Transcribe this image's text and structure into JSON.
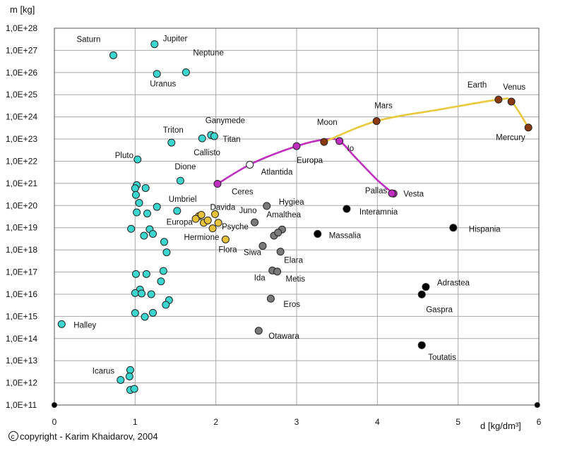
{
  "chart_data": {
    "type": "scatter",
    "xlabel": "d [kg/dm³]",
    "ylabel": "m [kg]",
    "xlim": [
      0,
      6
    ],
    "ylim_log10": [
      11,
      28
    ],
    "log_y": true,
    "grid": true,
    "x_ticks": [
      "0",
      "1",
      "2",
      "3",
      "4",
      "5",
      "6"
    ],
    "y_ticks": [
      "1,0E+11",
      "1,0E+12",
      "1,0E+13",
      "1,0E+14",
      "1,0E+15",
      "1,0E+16",
      "1,0E+17",
      "1,0E+18",
      "1,0E+19",
      "1,0E+20",
      "1,0E+21",
      "1,0E+22",
      "1,0E+23",
      "1,0E+24",
      "1,0E+25",
      "1,0E+26",
      "1,0E+27",
      "1,0E+28"
    ],
    "copyright": "copyright - Karim Khaidarov, 2004",
    "copyright_symbol": "c",
    "colors": {
      "icy": "#3cd6d0",
      "stony": "#e6c23a",
      "gray": "#7a7a7a",
      "metal": "#000000",
      "terrestrial": "#8b3a10",
      "moon_line": "#c02ec0",
      "planet_line": "#e8c83c",
      "grid": "#a8a8a8"
    },
    "series": [
      {
        "group": "icy",
        "points": [
          {
            "x": 0.73,
            "y": 26.78,
            "label": "Saturn"
          },
          {
            "x": 1.24,
            "y": 27.28,
            "label": "Jupiter"
          },
          {
            "x": 1.27,
            "y": 25.94,
            "label": "Uranus"
          },
          {
            "x": 1.63,
            "y": 26.01,
            "label": "Neptune"
          },
          {
            "x": 1.94,
            "y": 23.18,
            "label": "Ganymede"
          },
          {
            "x": 1.98,
            "y": 23.13,
            "label": "Titan"
          },
          {
            "x": 1.83,
            "y": 23.03,
            "label": "Callisto"
          },
          {
            "x": 1.45,
            "y": 22.84,
            "label": "Triton"
          },
          {
            "x": 1.03,
            "y": 22.08,
            "label": "Pluto"
          },
          {
            "x": 1.56,
            "y": 21.12,
            "label": "Dione"
          },
          {
            "x": 1.52,
            "y": 19.76,
            "label": "Umbriel"
          },
          {
            "x": 0.09,
            "y": 14.65,
            "label": "Halley"
          },
          {
            "x": 0.82,
            "y": 12.13,
            "label": "Icarus"
          },
          {
            "x": 1.02,
            "y": 20.92
          },
          {
            "x": 1.0,
            "y": 20.78
          },
          {
            "x": 1.13,
            "y": 20.79
          },
          {
            "x": 1.01,
            "y": 20.48
          },
          {
            "x": 1.05,
            "y": 20.12
          },
          {
            "x": 1.15,
            "y": 19.64
          },
          {
            "x": 1.27,
            "y": 19.94
          },
          {
            "x": 1.02,
            "y": 19.69
          },
          {
            "x": 0.95,
            "y": 18.95
          },
          {
            "x": 1.18,
            "y": 18.93
          },
          {
            "x": 1.22,
            "y": 18.72
          },
          {
            "x": 1.11,
            "y": 18.64
          },
          {
            "x": 1.36,
            "y": 18.36
          },
          {
            "x": 1.39,
            "y": 17.89
          },
          {
            "x": 1.01,
            "y": 16.91
          },
          {
            "x": 1.14,
            "y": 16.91
          },
          {
            "x": 1.35,
            "y": 17.05
          },
          {
            "x": 1.32,
            "y": 16.58
          },
          {
            "x": 1.06,
            "y": 16.21
          },
          {
            "x": 1.0,
            "y": 16.05
          },
          {
            "x": 1.08,
            "y": 16.03
          },
          {
            "x": 1.2,
            "y": 16.0
          },
          {
            "x": 1.42,
            "y": 15.73
          },
          {
            "x": 1.38,
            "y": 15.52
          },
          {
            "x": 1.0,
            "y": 15.15
          },
          {
            "x": 1.12,
            "y": 14.98
          },
          {
            "x": 1.22,
            "y": 15.16
          },
          {
            "x": 0.94,
            "y": 12.58
          },
          {
            "x": 0.93,
            "y": 12.29
          },
          {
            "x": 0.94,
            "y": 11.68
          },
          {
            "x": 0.99,
            "y": 11.73
          }
        ]
      },
      {
        "group": "stony",
        "points": [
          {
            "x": 1.79,
            "y": 19.52,
            "label": "Europa"
          },
          {
            "x": 1.85,
            "y": 19.22,
            "label": "Hermione"
          },
          {
            "x": 1.99,
            "y": 19.61,
            "label": "Davida"
          },
          {
            "x": 2.03,
            "y": 19.22,
            "label": "Psyche"
          },
          {
            "x": 2.12,
            "y": 18.47,
            "label": "Flora"
          },
          {
            "x": 1.75,
            "y": 19.4
          },
          {
            "x": 1.82,
            "y": 19.58
          },
          {
            "x": 1.9,
            "y": 19.33
          },
          {
            "x": 1.96,
            "y": 18.97
          }
        ]
      },
      {
        "group": "gray",
        "points": [
          {
            "x": 2.63,
            "y": 19.98,
            "label": "Hygiea"
          },
          {
            "x": 2.48,
            "y": 19.24,
            "label": "Juno"
          },
          {
            "x": 2.58,
            "y": 18.18,
            "label": "Siwa"
          },
          {
            "x": 2.82,
            "y": 18.92,
            "label": "Amalthea"
          },
          {
            "x": 2.8,
            "y": 17.92,
            "label": "Elara"
          },
          {
            "x": 2.7,
            "y": 17.07,
            "label": "Ida"
          },
          {
            "x": 2.76,
            "y": 17.02,
            "label": "Metis"
          },
          {
            "x": 2.68,
            "y": 15.8,
            "label": "Eros"
          },
          {
            "x": 2.53,
            "y": 14.35,
            "label": "Otawara"
          },
          {
            "x": 2.72,
            "y": 18.64
          },
          {
            "x": 2.77,
            "y": 18.78
          }
        ]
      },
      {
        "group": "metal",
        "points": [
          {
            "x": 3.62,
            "y": 19.85,
            "label": "Interamnia"
          },
          {
            "x": 3.26,
            "y": 18.72,
            "label": "Massalia"
          },
          {
            "x": 4.94,
            "y": 19.0,
            "label": "Hispania"
          },
          {
            "x": 4.6,
            "y": 16.33,
            "label": "Adrastea"
          },
          {
            "x": 4.55,
            "y": 15.99,
            "label": "Gaspra"
          },
          {
            "x": 4.55,
            "y": 13.7,
            "label": "Toutatis"
          }
        ]
      },
      {
        "group": "terrestrial",
        "points": [
          {
            "x": 5.5,
            "y": 24.78,
            "label": "Earth"
          },
          {
            "x": 5.66,
            "y": 24.69,
            "label": "Venus"
          },
          {
            "x": 5.87,
            "y": 23.52,
            "label": "Mercury"
          },
          {
            "x": 3.99,
            "y": 23.81,
            "label": "Mars"
          },
          {
            "x": 3.34,
            "y": 22.87,
            "label": "Moon"
          }
        ]
      },
      {
        "group": "open",
        "points": [
          {
            "x": 2.42,
            "y": 21.84,
            "label": "Atlantida"
          }
        ]
      },
      {
        "group": "magenta",
        "points": [
          {
            "x": 2.02,
            "y": 20.98,
            "label": "Ceres"
          },
          {
            "x": 3.0,
            "y": 22.68,
            "label": "Europa"
          },
          {
            "x": 3.53,
            "y": 22.91,
            "label": "Io"
          },
          {
            "x": 4.2,
            "y": 20.54,
            "label": "Vesta"
          },
          {
            "x": 4.18,
            "y": 20.55,
            "label": "Pallas"
          }
        ]
      },
      {
        "group": "axis",
        "points": [
          {
            "x": 0.0,
            "y": 11.0
          },
          {
            "x": 5.98,
            "y": 11.0
          }
        ]
      }
    ],
    "curves": [
      {
        "group": "moon_line",
        "points": [
          [
            2.02,
            20.98
          ],
          [
            2.45,
            21.9
          ],
          [
            3.0,
            22.68
          ],
          [
            3.35,
            22.98
          ],
          [
            3.53,
            22.91
          ],
          [
            3.72,
            22.2
          ],
          [
            4.0,
            21.15
          ],
          [
            4.2,
            20.54
          ]
        ]
      },
      {
        "group": "planet_line",
        "points": [
          [
            3.34,
            22.87
          ],
          [
            3.99,
            23.81
          ],
          [
            4.8,
            24.35
          ],
          [
            5.5,
            24.78
          ],
          [
            5.66,
            24.69
          ],
          [
            5.87,
            23.52
          ]
        ]
      }
    ]
  }
}
